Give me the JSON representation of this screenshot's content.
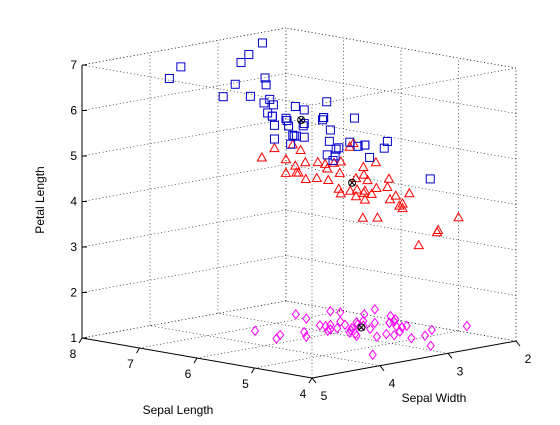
{
  "chart_data": {
    "type": "scatter3d",
    "title": "",
    "xlabel": "Sepal Length",
    "ylabel": "Sepal Width",
    "zlabel": "Petal Length",
    "xlim": [
      4,
      8
    ],
    "ylim": [
      2,
      5
    ],
    "zlim": [
      1,
      7
    ],
    "x_ticks": [
      "4",
      "5",
      "6",
      "7",
      "8"
    ],
    "y_ticks": [
      "2",
      "3",
      "4",
      "5"
    ],
    "z_ticks": [
      "1",
      "2",
      "3",
      "4",
      "5",
      "6",
      "7"
    ],
    "grid": true,
    "legend": "none",
    "colors": {
      "marker_setosa": "#ff00ff",
      "marker_versicolor": "#ff0000",
      "marker_virginica": "#0000cc",
      "marker_center": "#000000"
    },
    "series": [
      {
        "marker": "diamond",
        "color": "#ff00ff",
        "points": [
          [
            5.1,
            3.5,
            1.4
          ],
          [
            4.9,
            3.0,
            1.4
          ],
          [
            4.7,
            3.2,
            1.3
          ],
          [
            4.6,
            3.1,
            1.5
          ],
          [
            5.0,
            3.6,
            1.4
          ],
          [
            5.4,
            3.9,
            1.7
          ],
          [
            4.6,
            3.4,
            1.4
          ],
          [
            5.0,
            3.4,
            1.5
          ],
          [
            4.4,
            2.9,
            1.4
          ],
          [
            4.9,
            3.1,
            1.5
          ],
          [
            5.4,
            3.7,
            1.5
          ],
          [
            4.8,
            3.4,
            1.6
          ],
          [
            4.8,
            3.0,
            1.4
          ],
          [
            4.3,
            3.0,
            1.1
          ],
          [
            5.8,
            4.0,
            1.2
          ],
          [
            5.7,
            4.4,
            1.5
          ],
          [
            5.4,
            3.9,
            1.3
          ],
          [
            5.1,
            3.5,
            1.4
          ],
          [
            5.7,
            3.8,
            1.7
          ],
          [
            5.1,
            3.8,
            1.5
          ],
          [
            5.4,
            3.4,
            1.7
          ],
          [
            5.1,
            3.7,
            1.5
          ],
          [
            4.6,
            3.6,
            1.0
          ],
          [
            5.1,
            3.3,
            1.7
          ],
          [
            4.8,
            3.4,
            1.9
          ],
          [
            5.0,
            3.0,
            1.6
          ],
          [
            5.0,
            3.4,
            1.6
          ],
          [
            5.2,
            3.5,
            1.5
          ],
          [
            5.2,
            3.4,
            1.4
          ],
          [
            4.7,
            3.2,
            1.6
          ],
          [
            4.8,
            3.1,
            1.6
          ],
          [
            5.4,
            3.4,
            1.5
          ],
          [
            5.2,
            4.1,
            1.5
          ],
          [
            5.5,
            4.2,
            1.4
          ],
          [
            4.9,
            3.1,
            1.5
          ],
          [
            5.0,
            3.2,
            1.2
          ],
          [
            5.5,
            3.5,
            1.3
          ],
          [
            4.9,
            3.6,
            1.4
          ],
          [
            4.4,
            3.0,
            1.3
          ],
          [
            5.1,
            3.4,
            1.5
          ],
          [
            5.0,
            3.5,
            1.3
          ],
          [
            4.5,
            2.3,
            1.3
          ],
          [
            4.4,
            3.2,
            1.3
          ],
          [
            5.0,
            3.5,
            1.6
          ],
          [
            5.1,
            3.8,
            1.9
          ],
          [
            4.8,
            3.0,
            1.4
          ],
          [
            5.1,
            3.8,
            1.6
          ],
          [
            4.6,
            3.2,
            1.4
          ],
          [
            5.3,
            3.7,
            1.5
          ],
          [
            5.0,
            3.3,
            1.4
          ]
        ]
      },
      {
        "marker": "triangle",
        "color": "#ff0000",
        "points": [
          [
            7.0,
            3.2,
            4.7
          ],
          [
            6.4,
            3.2,
            4.5
          ],
          [
            6.9,
            3.1,
            4.9
          ],
          [
            5.5,
            2.3,
            4.0
          ],
          [
            6.5,
            2.8,
            4.6
          ],
          [
            5.7,
            2.8,
            4.5
          ],
          [
            6.3,
            3.3,
            4.7
          ],
          [
            4.9,
            2.4,
            3.3
          ],
          [
            6.6,
            2.9,
            4.6
          ],
          [
            5.2,
            2.7,
            3.9
          ],
          [
            5.0,
            2.0,
            3.5
          ],
          [
            5.9,
            3.0,
            4.2
          ],
          [
            6.0,
            2.2,
            4.0
          ],
          [
            6.1,
            2.9,
            4.7
          ],
          [
            5.6,
            2.9,
            3.6
          ],
          [
            6.7,
            3.1,
            4.4
          ],
          [
            5.6,
            3.0,
            4.5
          ],
          [
            5.8,
            2.7,
            4.1
          ],
          [
            6.2,
            2.2,
            4.5
          ],
          [
            5.6,
            2.5,
            3.9
          ],
          [
            5.9,
            3.2,
            4.8
          ],
          [
            6.1,
            2.8,
            4.0
          ],
          [
            6.3,
            2.5,
            4.9
          ],
          [
            6.1,
            2.8,
            4.7
          ],
          [
            6.4,
            2.9,
            4.3
          ],
          [
            6.6,
            3.0,
            4.4
          ],
          [
            6.8,
            2.8,
            4.8
          ],
          [
            6.7,
            3.0,
            5.0
          ],
          [
            6.0,
            2.9,
            4.5
          ],
          [
            5.7,
            2.6,
            3.5
          ],
          [
            5.5,
            2.4,
            3.8
          ],
          [
            5.5,
            2.4,
            3.7
          ],
          [
            5.8,
            2.7,
            3.9
          ],
          [
            6.0,
            2.7,
            5.1
          ],
          [
            5.4,
            3.0,
            4.5
          ],
          [
            6.0,
            3.4,
            4.5
          ],
          [
            6.7,
            3.1,
            4.7
          ],
          [
            6.3,
            2.3,
            4.4
          ],
          [
            5.6,
            3.0,
            4.1
          ],
          [
            5.5,
            2.5,
            4.0
          ],
          [
            5.5,
            2.6,
            4.4
          ],
          [
            6.1,
            3.0,
            4.6
          ],
          [
            5.8,
            2.6,
            4.0
          ],
          [
            5.0,
            2.3,
            3.3
          ],
          [
            5.6,
            2.7,
            4.2
          ],
          [
            5.7,
            3.0,
            4.2
          ],
          [
            5.7,
            2.9,
            4.2
          ],
          [
            6.2,
            2.9,
            4.3
          ],
          [
            5.1,
            2.5,
            3.0
          ],
          [
            5.7,
            2.8,
            4.1
          ]
        ]
      },
      {
        "marker": "square",
        "color": "#0000cc",
        "points": [
          [
            6.3,
            3.3,
            6.0
          ],
          [
            5.8,
            2.7,
            5.1
          ],
          [
            7.1,
            3.0,
            5.9
          ],
          [
            6.3,
            2.9,
            5.6
          ],
          [
            6.5,
            3.0,
            5.8
          ],
          [
            7.6,
            3.0,
            6.6
          ],
          [
            4.9,
            2.5,
            4.5
          ],
          [
            7.3,
            2.9,
            6.3
          ],
          [
            6.7,
            2.5,
            5.8
          ],
          [
            7.2,
            3.6,
            6.1
          ],
          [
            6.5,
            3.2,
            5.1
          ],
          [
            6.4,
            2.7,
            5.3
          ],
          [
            6.8,
            3.0,
            5.5
          ],
          [
            5.7,
            2.5,
            5.0
          ],
          [
            5.8,
            2.8,
            5.1
          ],
          [
            6.4,
            3.2,
            5.3
          ],
          [
            6.5,
            3.0,
            5.5
          ],
          [
            7.7,
            3.8,
            6.7
          ],
          [
            7.7,
            2.6,
            6.9
          ],
          [
            6.0,
            2.2,
            5.0
          ],
          [
            6.9,
            3.2,
            5.7
          ],
          [
            5.6,
            2.8,
            4.9
          ],
          [
            7.7,
            2.8,
            6.7
          ],
          [
            6.3,
            2.7,
            4.9
          ],
          [
            6.7,
            3.3,
            5.7
          ],
          [
            7.2,
            3.2,
            6.0
          ],
          [
            6.2,
            2.8,
            4.8
          ],
          [
            6.1,
            3.0,
            4.9
          ],
          [
            6.4,
            2.8,
            5.6
          ],
          [
            7.2,
            3.0,
            5.8
          ],
          [
            7.4,
            2.8,
            6.1
          ],
          [
            7.9,
            3.8,
            6.4
          ],
          [
            6.4,
            2.8,
            5.6
          ],
          [
            6.3,
            2.8,
            5.1
          ],
          [
            6.1,
            2.6,
            5.6
          ],
          [
            7.7,
            3.0,
            6.1
          ],
          [
            6.3,
            3.4,
            5.6
          ],
          [
            6.4,
            3.1,
            5.5
          ],
          [
            6.0,
            3.0,
            4.8
          ],
          [
            6.9,
            3.1,
            5.4
          ],
          [
            6.7,
            3.1,
            5.6
          ],
          [
            6.9,
            3.1,
            5.1
          ],
          [
            5.8,
            2.7,
            5.1
          ],
          [
            6.8,
            3.2,
            5.9
          ],
          [
            6.7,
            3.3,
            5.7
          ],
          [
            6.7,
            3.0,
            5.2
          ],
          [
            6.3,
            2.5,
            5.0
          ],
          [
            6.5,
            3.0,
            5.2
          ],
          [
            6.2,
            3.4,
            5.4
          ],
          [
            5.9,
            3.0,
            5.1
          ]
        ]
      },
      {
        "marker": "circle-x",
        "color": "#000000",
        "points": [
          [
            5.01,
            3.42,
            1.46
          ],
          [
            5.94,
            2.77,
            4.26
          ],
          [
            6.59,
            2.97,
            5.55
          ]
        ]
      }
    ]
  }
}
